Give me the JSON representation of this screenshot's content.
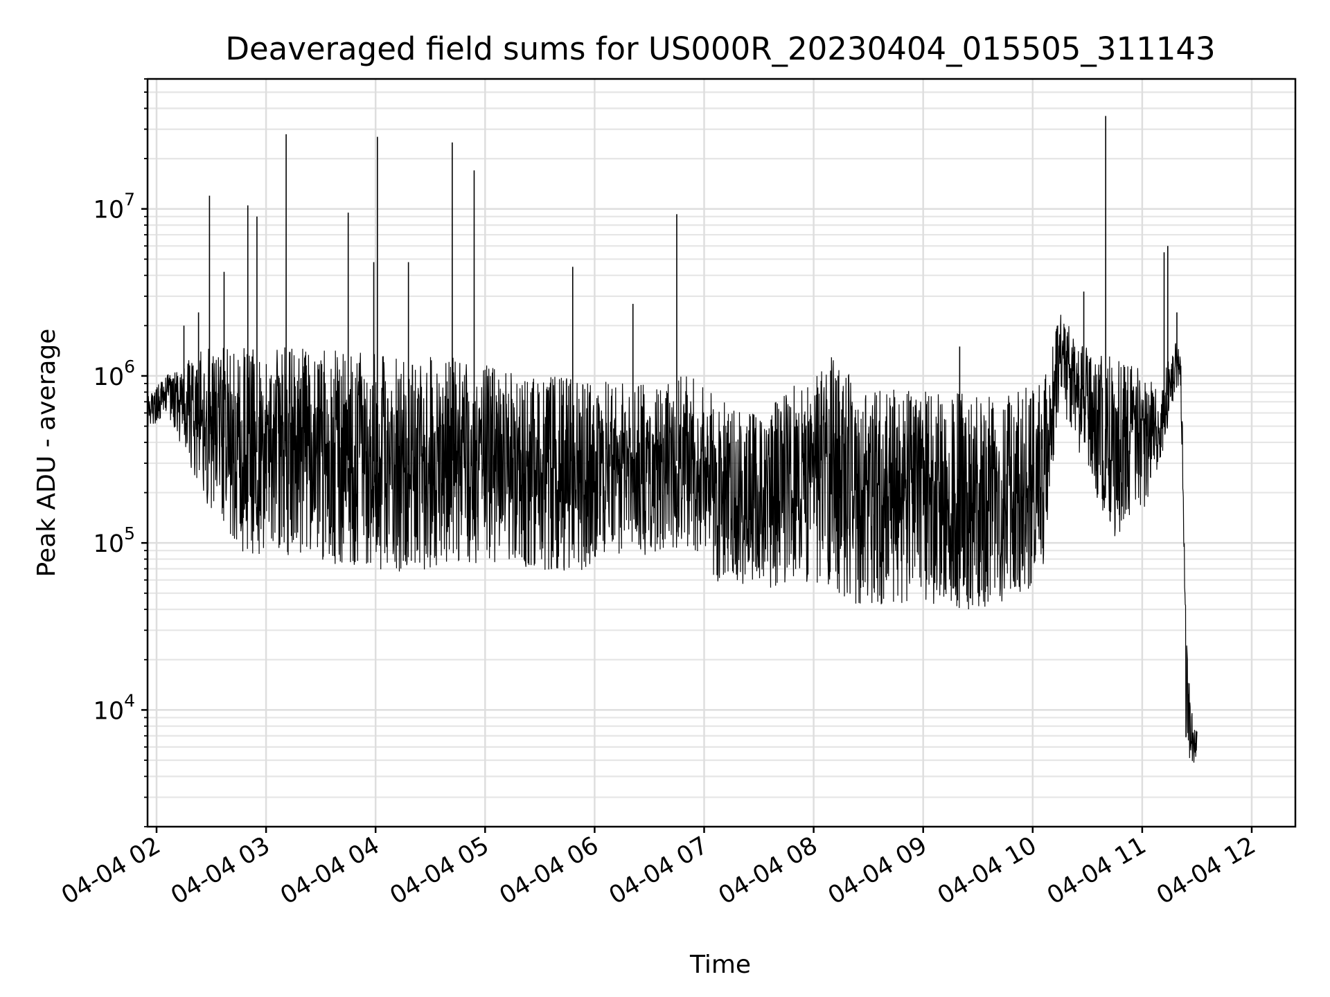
{
  "chart_data": {
    "type": "line",
    "title": "Deaveraged field sums for US000R_20230404_015505_311143",
    "xlabel": "Time",
    "ylabel": "Peak ADU - average",
    "x_scale": "time",
    "y_scale": "log",
    "xlim": [
      "2023-04-04 01:55",
      "2023-04-04 12:25"
    ],
    "ylim": [
      2000,
      60000000
    ],
    "x_ticks": [
      "04-04 02",
      "04-04 03",
      "04-04 04",
      "04-04 05",
      "04-04 06",
      "04-04 07",
      "04-04 08",
      "04-04 09",
      "04-04 10",
      "04-04 11",
      "04-04 12"
    ],
    "y_ticks": [
      {
        "value": 10000,
        "base": "10",
        "exp": "4"
      },
      {
        "value": 100000,
        "base": "10",
        "exp": "5"
      },
      {
        "value": 1000000,
        "base": "10",
        "exp": "6"
      },
      {
        "value": 10000000,
        "base": "10",
        "exp": "7"
      }
    ],
    "grid": true,
    "line_color": "#000000",
    "series": [
      {
        "band": [
          [
            "2023-04-04 01:55",
            450000,
            750000
          ],
          [
            "2023-04-04 02:05",
            600000,
            1000000
          ],
          [
            "2023-04-04 02:15",
            350000,
            1200000
          ],
          [
            "2023-04-04 02:30",
            150000,
            1600000
          ],
          [
            "2023-04-04 02:45",
            90000,
            1500000
          ],
          [
            "2023-04-04 03:00",
            80000,
            1450000
          ],
          [
            "2023-04-04 03:15",
            80000,
            1500000
          ],
          [
            "2023-04-04 03:30",
            80000,
            1450000
          ],
          [
            "2023-04-04 03:45",
            70000,
            1400000
          ],
          [
            "2023-04-04 04:00",
            70000,
            1350000
          ],
          [
            "2023-04-04 04:20",
            65000,
            1300000
          ],
          [
            "2023-04-04 04:40",
            75000,
            1300000
          ],
          [
            "2023-04-04 05:00",
            75000,
            1200000
          ],
          [
            "2023-04-04 05:20",
            70000,
            1000000
          ],
          [
            "2023-04-04 05:40",
            65000,
            1000000
          ],
          [
            "2023-04-04 06:00",
            70000,
            950000
          ],
          [
            "2023-04-04 06:20",
            80000,
            900000
          ],
          [
            "2023-04-04 06:40",
            90000,
            1100000
          ],
          [
            "2023-04-04 06:55",
            90000,
            1000000
          ],
          [
            "2023-04-04 07:10",
            50000,
            700000
          ],
          [
            "2023-04-04 07:30",
            50000,
            600000
          ],
          [
            "2023-04-04 07:50",
            60000,
            900000
          ],
          [
            "2023-04-04 08:10",
            50000,
            1300000
          ],
          [
            "2023-04-04 08:30",
            40000,
            800000
          ],
          [
            "2023-04-04 08:50",
            40000,
            850000
          ],
          [
            "2023-04-04 09:10",
            40000,
            800000
          ],
          [
            "2023-04-04 09:30",
            40000,
            800000
          ],
          [
            "2023-04-04 09:50",
            45000,
            850000
          ],
          [
            "2023-04-04 10:05",
            60000,
            900000
          ],
          [
            "2023-04-04 10:15",
            700000,
            2500000
          ],
          [
            "2023-04-04 10:30",
            250000,
            1500000
          ],
          [
            "2023-04-04 10:45",
            90000,
            1300000
          ],
          [
            "2023-04-04 11:00",
            150000,
            1100000
          ],
          [
            "2023-04-04 11:10",
            300000,
            900000
          ],
          [
            "2023-04-04 11:18",
            800000,
            1600000
          ],
          [
            "2023-04-04 11:21",
            900000,
            1500000
          ],
          [
            "2023-04-04 11:23",
            60000,
            200000
          ],
          [
            "2023-04-04 11:24",
            5000,
            30000
          ],
          [
            "2023-04-04 11:28",
            4500,
            8000
          ],
          [
            "2023-04-04 11:30",
            5500,
            7500
          ]
        ],
        "spikes": [
          [
            "2023-04-04 02:15",
            2000000
          ],
          [
            "2023-04-04 02:23",
            2400000
          ],
          [
            "2023-04-04 02:29",
            12000000
          ],
          [
            "2023-04-04 02:37",
            4200000
          ],
          [
            "2023-04-04 02:50",
            10500000
          ],
          [
            "2023-04-04 02:55",
            9000000
          ],
          [
            "2023-04-04 03:11",
            28000000
          ],
          [
            "2023-04-04 03:45",
            9500000
          ],
          [
            "2023-04-04 03:59",
            4800000
          ],
          [
            "2023-04-04 04:01",
            27000000
          ],
          [
            "2023-04-04 04:18",
            4800000
          ],
          [
            "2023-04-04 04:42",
            25000000
          ],
          [
            "2023-04-04 04:54",
            17000000
          ],
          [
            "2023-04-04 05:48",
            4500000
          ],
          [
            "2023-04-04 06:21",
            2700000
          ],
          [
            "2023-04-04 06:45",
            9300000
          ],
          [
            "2023-04-04 09:20",
            1500000
          ],
          [
            "2023-04-04 10:28",
            3200000
          ],
          [
            "2023-04-04 10:40",
            36000000
          ],
          [
            "2023-04-04 11:12",
            5500000
          ],
          [
            "2023-04-04 11:14",
            6000000
          ],
          [
            "2023-04-04 11:19",
            2400000
          ]
        ]
      }
    ]
  }
}
